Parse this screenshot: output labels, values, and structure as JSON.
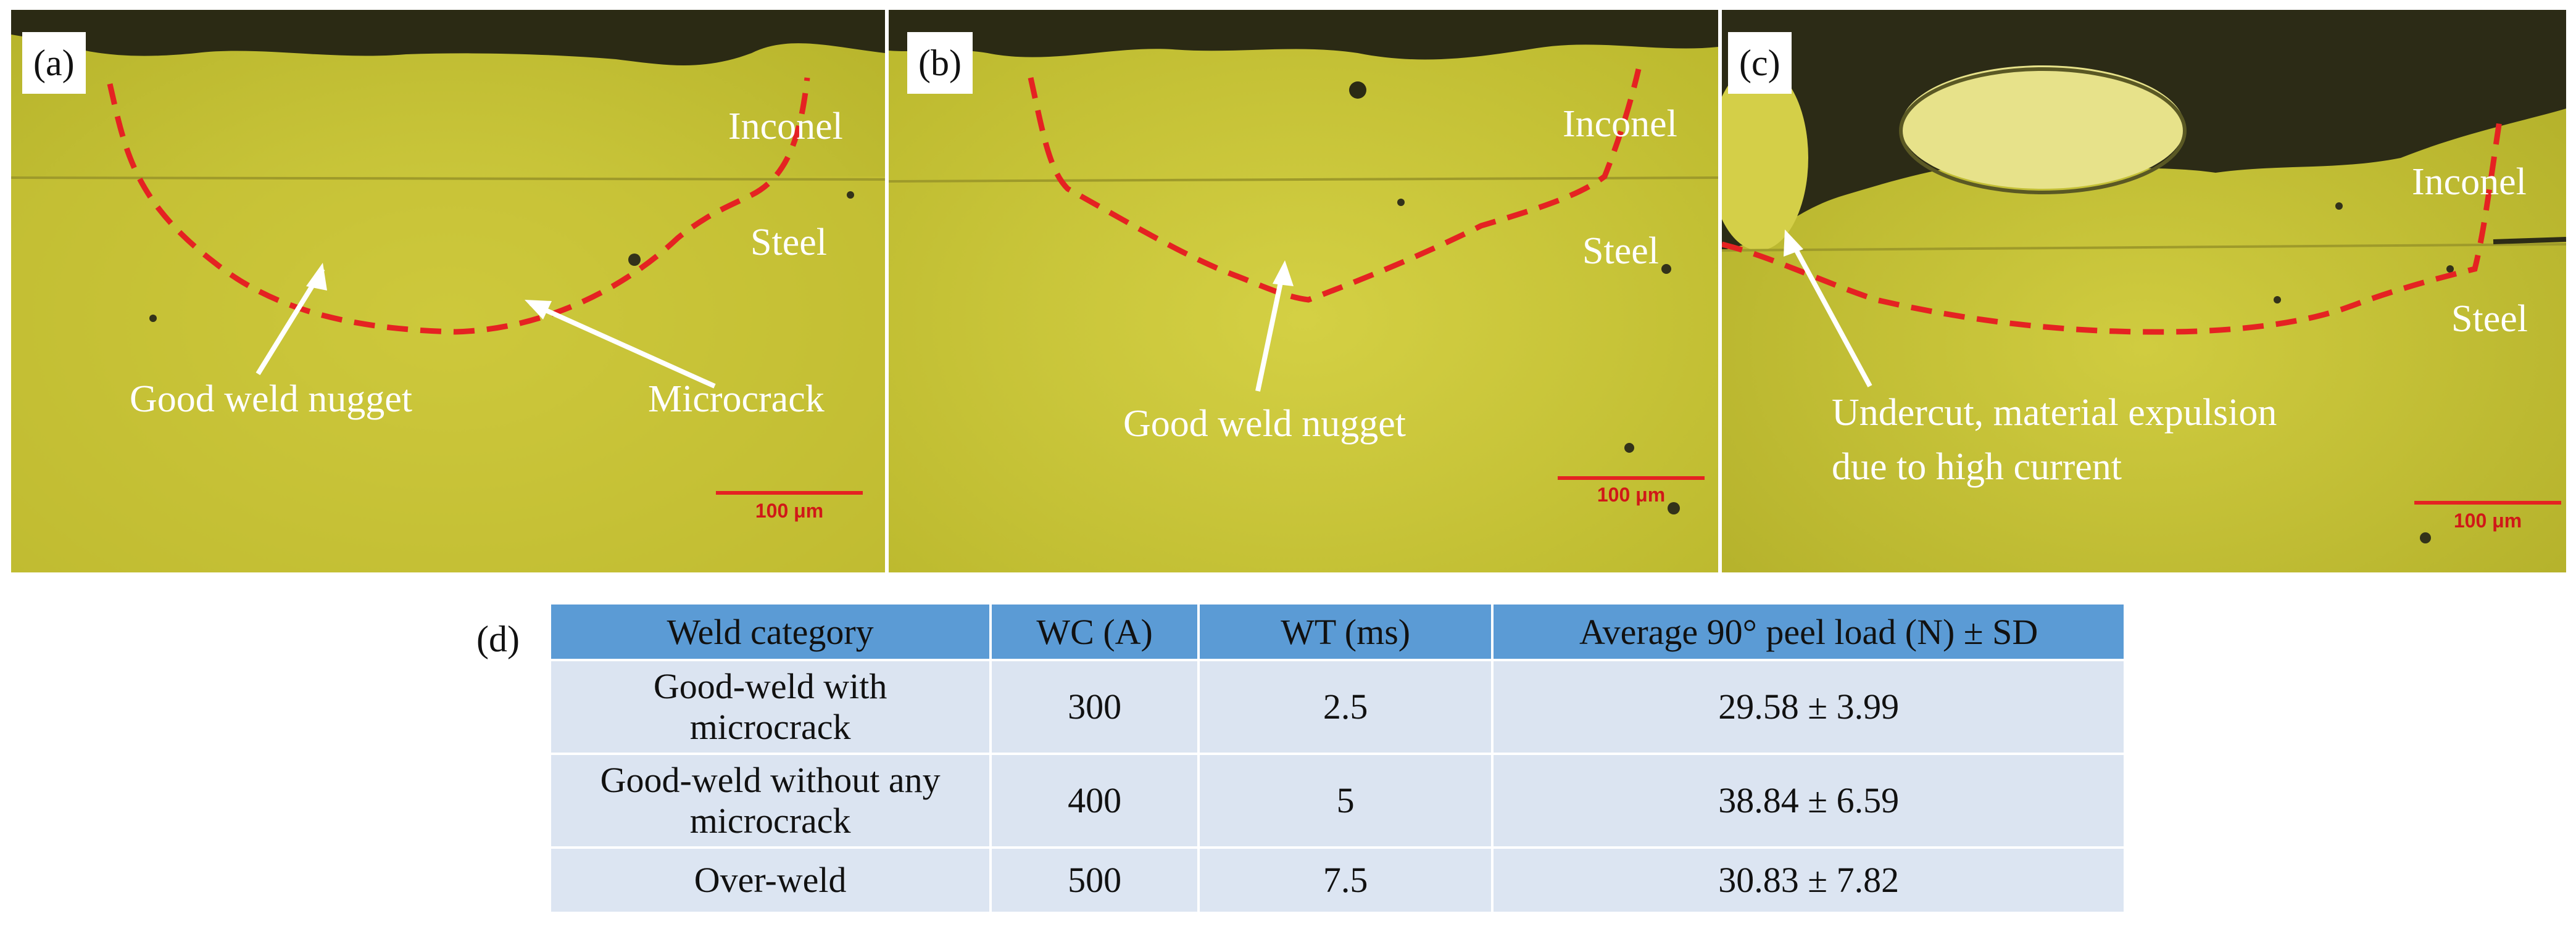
{
  "panels": {
    "a": {
      "letter": "(a)",
      "inconel": "Inconel",
      "steel": "Steel",
      "annotation1": "Good weld nugget",
      "annotation2": "Microcrack",
      "scale": "100 μm"
    },
    "b": {
      "letter": "(b)",
      "inconel": "Inconel",
      "steel": "Steel",
      "annotation1": "Good weld nugget",
      "scale": "100 μm"
    },
    "c": {
      "letter": "(c)",
      "inconel": "Inconel",
      "steel": "Steel",
      "annotation1_line1": "Undercut, material expulsion",
      "annotation1_line2": "due to high current",
      "scale": "100 μm"
    }
  },
  "colors": {
    "micrograph": "#c9c535",
    "weld_boundary": "#e52222",
    "table_header": "#5b9bd5",
    "table_row": "#dce5f2"
  },
  "table": {
    "label": "(d)",
    "headers": [
      "Weld category",
      "WC (A)",
      "WT (ms)",
      "Average 90° peel load (N) ± SD"
    ],
    "rows": [
      {
        "category_line1": "Good-weld with",
        "category_line2": "microcrack",
        "wc": "300",
        "wt": "2.5",
        "load": "29.58 ± 3.99"
      },
      {
        "category_line1": "Good-weld without any",
        "category_line2": "microcrack",
        "wc": "400",
        "wt": "5",
        "load": "38.84 ± 6.59"
      },
      {
        "category_line1": "Over-weld",
        "category_line2": "",
        "wc": "500",
        "wt": "7.5",
        "load": "30.83 ± 7.82"
      }
    ]
  }
}
